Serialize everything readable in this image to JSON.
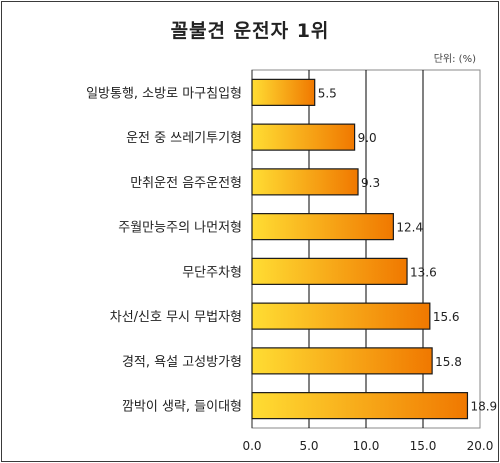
{
  "chart_data": {
    "type": "bar",
    "orientation": "horizontal",
    "title": "꼴불견 운전자 1위",
    "unit_label": "단위: (%)",
    "categories": [
      "일방통행, 소방로 마구침입형",
      "운전 중 쓰레기투기형",
      "만취운전 음주운전형",
      "주월만능주의 나먼저형",
      "무단주차형",
      "차선/신호 무시 무법자형",
      "경적, 욕설 고성방가형",
      "깜박이 생략, 들이대형"
    ],
    "values": [
      5.5,
      9.0,
      9.3,
      12.4,
      13.6,
      15.6,
      15.8,
      18.9
    ],
    "value_labels": [
      "5.5",
      "9.0",
      "9.3",
      "12.4",
      "13.6",
      "15.6",
      "15.8",
      "18.9"
    ],
    "xlim": [
      0,
      20
    ],
    "x_ticks": [
      "0.0",
      "5.0",
      "10.0",
      "15.0",
      "20.0"
    ],
    "grid": true,
    "colors": {
      "bar_start": "#ffdd33",
      "bar_end": "#f07800",
      "bar_edge": "#1a1a1a",
      "grid": "#000000",
      "plot_border": "#8a8a8a"
    }
  }
}
